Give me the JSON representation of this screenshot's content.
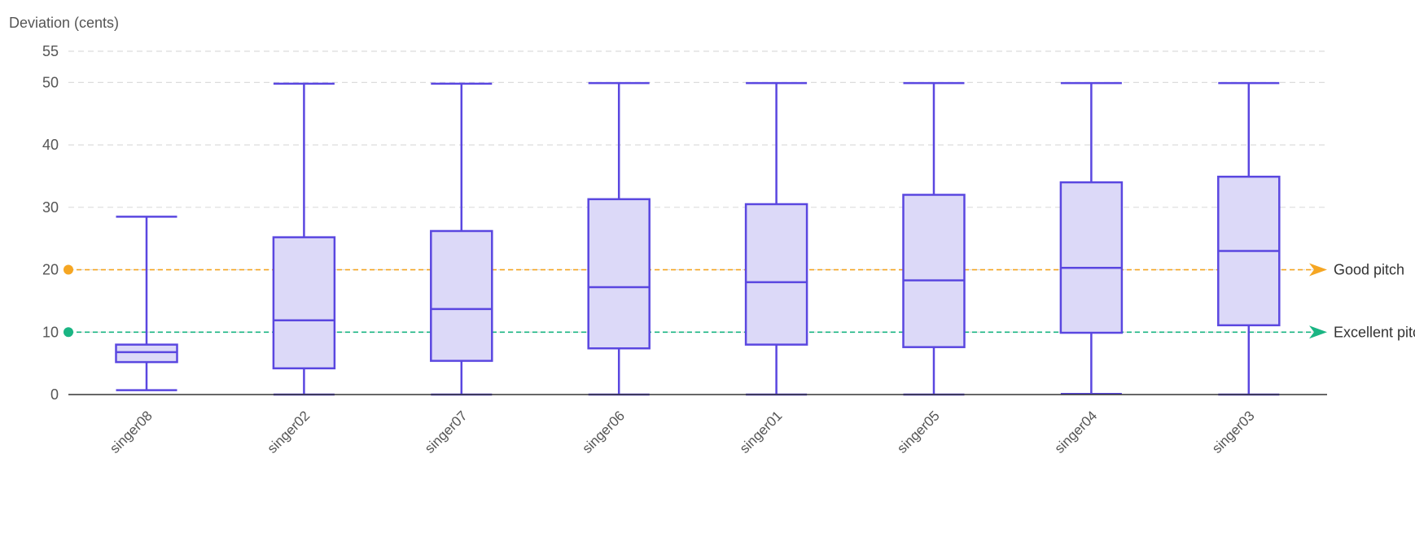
{
  "chart_data": {
    "type": "box",
    "ylabel": "Deviation (cents)",
    "ylim": [
      0,
      55
    ],
    "yticks": [
      0,
      10,
      20,
      30,
      40,
      50,
      55
    ],
    "grid": true,
    "categories": [
      "singer08",
      "singer02",
      "singer07",
      "singer06",
      "singer01",
      "singer05",
      "singer04",
      "singer03"
    ],
    "boxes": [
      {
        "min": 0.7,
        "q1": 5.2,
        "median": 6.8,
        "q3": 8.0,
        "max": 28.5
      },
      {
        "min": 0.0,
        "q1": 4.2,
        "median": 11.9,
        "q3": 25.2,
        "max": 49.8
      },
      {
        "min": 0.0,
        "q1": 5.4,
        "median": 13.7,
        "q3": 26.2,
        "max": 49.8
      },
      {
        "min": 0.0,
        "q1": 7.4,
        "median": 17.2,
        "q3": 31.3,
        "max": 49.9
      },
      {
        "min": 0.0,
        "q1": 8.0,
        "median": 18.0,
        "q3": 30.5,
        "max": 49.9
      },
      {
        "min": 0.0,
        "q1": 7.6,
        "median": 18.3,
        "q3": 32.0,
        "max": 49.9
      },
      {
        "min": 0.1,
        "q1": 9.9,
        "median": 20.3,
        "q3": 34.0,
        "max": 49.9
      },
      {
        "min": 0.0,
        "q1": 11.1,
        "median": 23.0,
        "q3": 34.9,
        "max": 49.9
      }
    ],
    "reference_lines": [
      {
        "value": 20,
        "label": "Good pitch",
        "color": "#f5a623"
      },
      {
        "value": 10,
        "label": "Excellent pitch",
        "color": "#1ab583"
      }
    ],
    "colors": {
      "box_stroke": "#5a47e0",
      "box_fill": "#dcd9f8",
      "grid": "#dcdcdc",
      "axis": "#333333"
    }
  }
}
